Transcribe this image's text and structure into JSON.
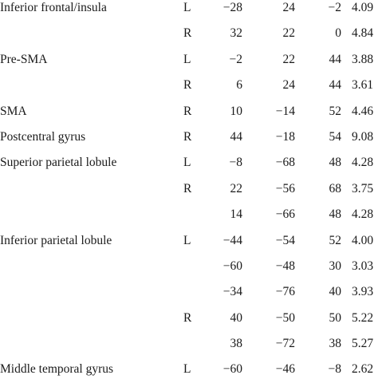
{
  "rows": [
    {
      "region": "Inferior frontal/insula",
      "hemisphere": "L",
      "x": "−28",
      "y": "24",
      "z": "−2",
      "t": "4.09"
    },
    {
      "region": "",
      "hemisphere": "R",
      "x": "32",
      "y": "22",
      "z": "0",
      "t": "4.84"
    },
    {
      "region": "Pre-SMA",
      "hemisphere": "L",
      "x": "−2",
      "y": "22",
      "z": "44",
      "t": "3.88"
    },
    {
      "region": "",
      "hemisphere": "R",
      "x": "6",
      "y": "24",
      "z": "44",
      "t": "3.61"
    },
    {
      "region": "SMA",
      "hemisphere": "R",
      "x": "10",
      "y": "−14",
      "z": "52",
      "t": "4.46"
    },
    {
      "region": "Postcentral gyrus",
      "hemisphere": "R",
      "x": "44",
      "y": "−18",
      "z": "54",
      "t": "9.08"
    },
    {
      "region": "Superior parietal lobule",
      "hemisphere": "L",
      "x": "−8",
      "y": "−68",
      "z": "48",
      "t": "4.28"
    },
    {
      "region": "",
      "hemisphere": "R",
      "x": "22",
      "y": "−56",
      "z": "68",
      "t": "3.75"
    },
    {
      "region": "",
      "hemisphere": "",
      "x": "14",
      "y": "−66",
      "z": "48",
      "t": "4.28"
    },
    {
      "region": "Inferior parietal lobule",
      "hemisphere": "L",
      "x": "−44",
      "y": "−54",
      "z": "52",
      "t": "4.00"
    },
    {
      "region": "",
      "hemisphere": "",
      "x": "−60",
      "y": "−48",
      "z": "30",
      "t": "3.03"
    },
    {
      "region": "",
      "hemisphere": "",
      "x": "−34",
      "y": "−76",
      "z": "40",
      "t": "3.93"
    },
    {
      "region": "",
      "hemisphere": "R",
      "x": "40",
      "y": "−50",
      "z": "50",
      "t": "5.22"
    },
    {
      "region": "",
      "hemisphere": "",
      "x": "38",
      "y": "−72",
      "z": "38",
      "t": "5.27"
    },
    {
      "region": "Middle temporal gyrus",
      "hemisphere": "L",
      "x": "−60",
      "y": "−46",
      "z": "−8",
      "t": "2.62"
    }
  ]
}
